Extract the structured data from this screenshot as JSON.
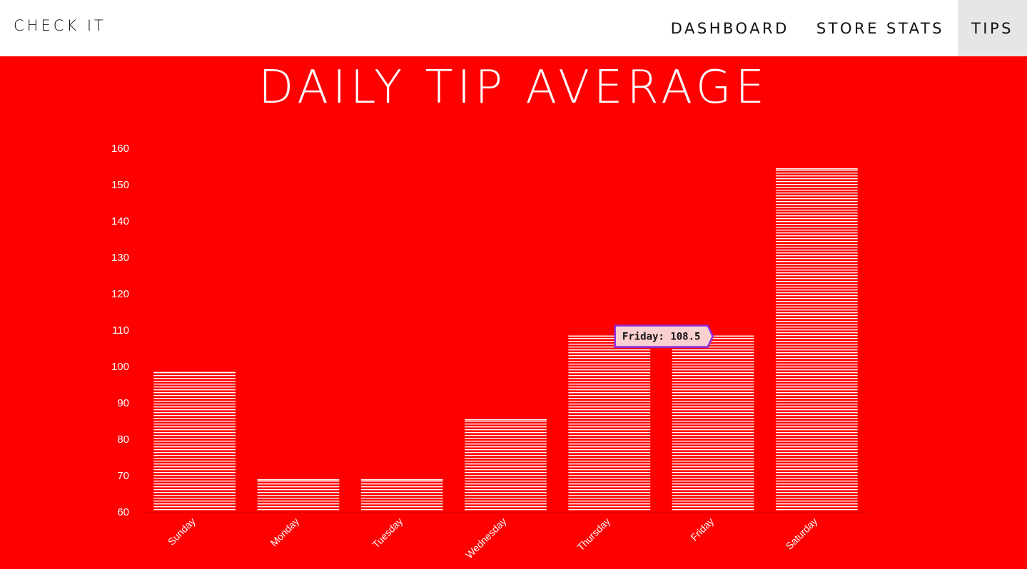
{
  "navbar": {
    "brand": "CHECK IT",
    "items": [
      {
        "label": "DASHBOARD",
        "active": false
      },
      {
        "label": "STORE STATS",
        "active": false
      },
      {
        "label": "TIPS",
        "active": true
      }
    ]
  },
  "page": {
    "title": "DAILY TIP AVERAGE"
  },
  "colors": {
    "background": "#ff0000",
    "bar_stripe": "#ffffff",
    "tooltip_bg": "#fbd0d0",
    "tooltip_border": "#8a2be2"
  },
  "chart_data": {
    "type": "bar",
    "categories": [
      "Sunday",
      "Monday",
      "Tuesday",
      "Wednesday",
      "Thursday",
      "Friday",
      "Saturday"
    ],
    "values": [
      98.5,
      69,
      69,
      85.5,
      108.5,
      108.5,
      154.5
    ],
    "ylim": [
      60,
      160
    ],
    "yticks": [
      60,
      70,
      80,
      90,
      100,
      110,
      120,
      130,
      140,
      150,
      160
    ],
    "grid": false,
    "tooltip": {
      "category": "Friday",
      "text": "Friday: 108.5"
    }
  }
}
